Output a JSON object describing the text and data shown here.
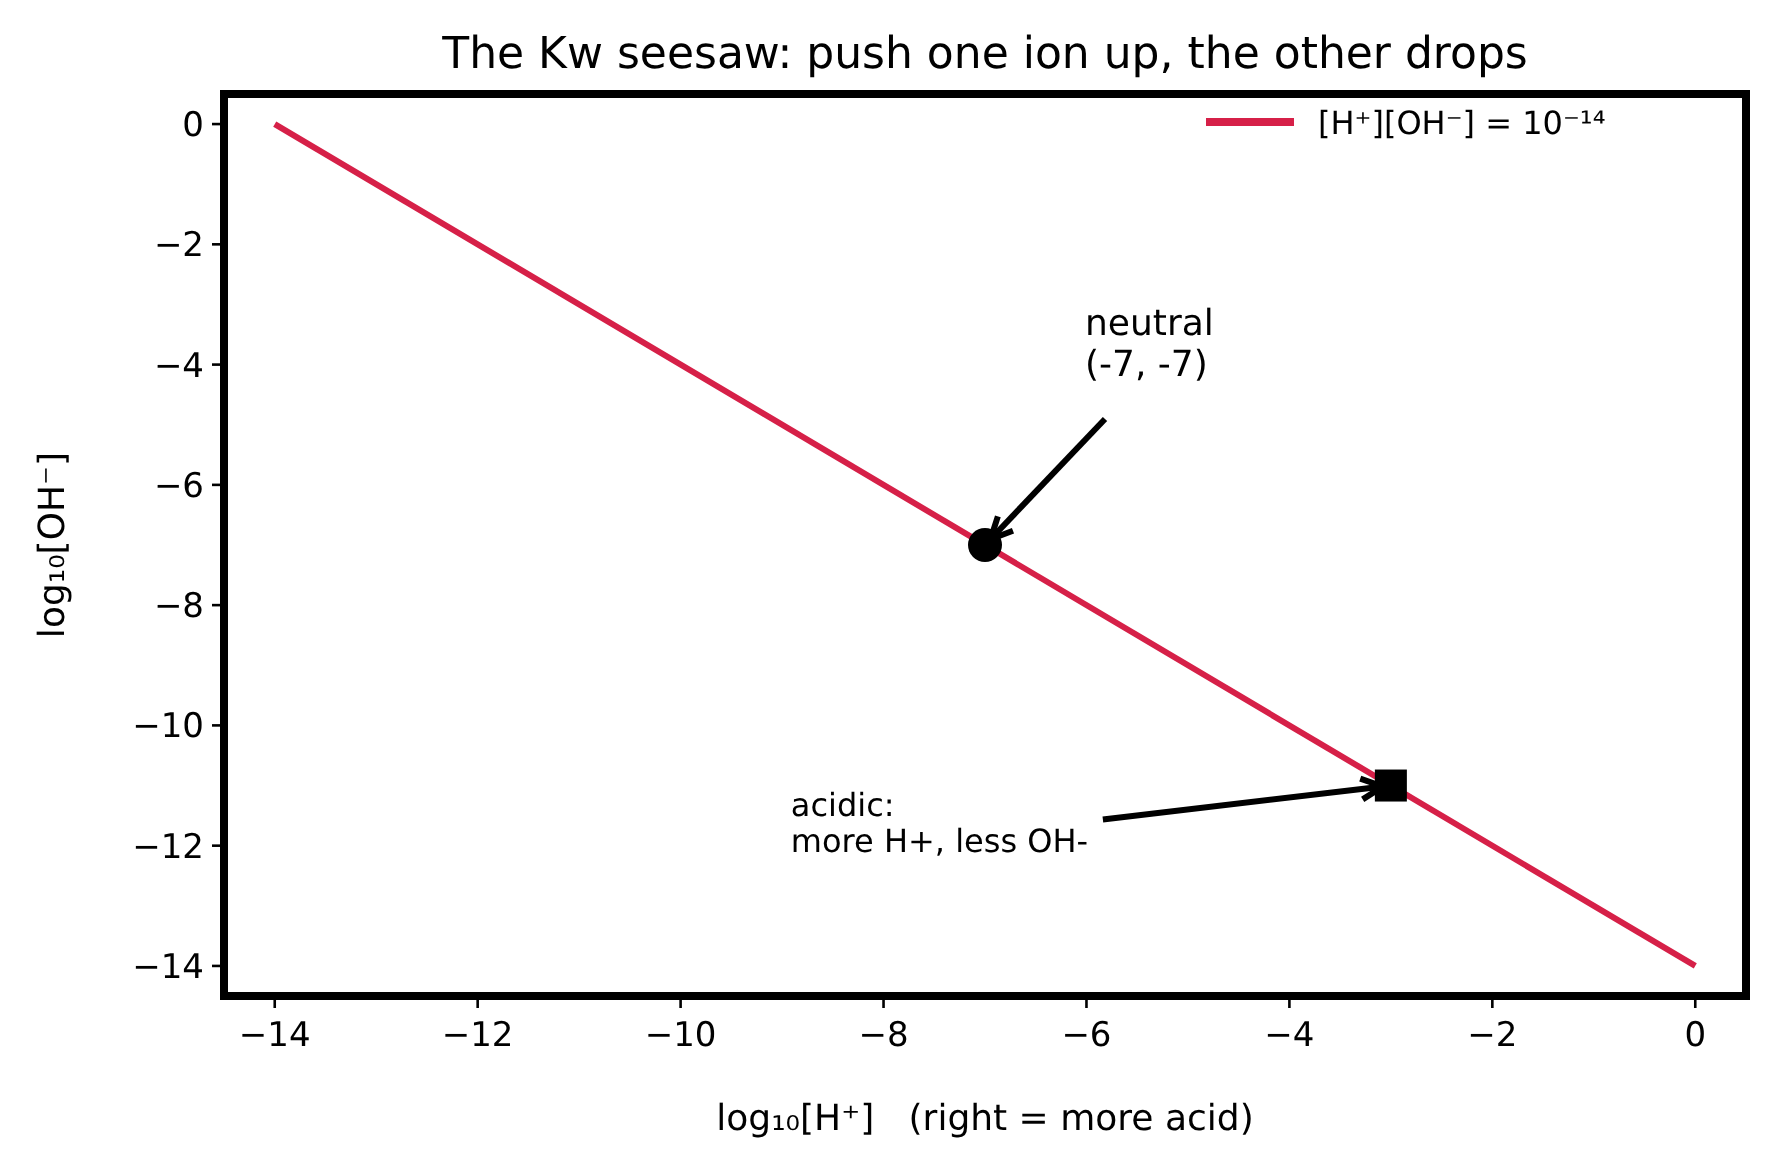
{
  "chart_data": {
    "type": "line",
    "title": "The Kw seesaw: push one ion up, the other drops",
    "xlabel": "log₁₀[H⁺]   (right = more acid)",
    "ylabel": "log₁₀[OH⁻]",
    "xlim": [
      -14.5,
      0.5
    ],
    "ylim": [
      -14.5,
      0.5
    ],
    "xticks": [
      -14,
      -12,
      -10,
      -8,
      -6,
      -4,
      -2,
      0
    ],
    "yticks": [
      -14,
      -12,
      -10,
      -8,
      -6,
      -4,
      -2,
      0
    ],
    "grid": false,
    "legend": "top right",
    "series": [
      {
        "name": "[H⁺][OH⁻] = 10⁻¹⁴",
        "color": "#d62048",
        "x": [
          -14,
          0
        ],
        "values": [
          0,
          -14
        ],
        "marker": "none",
        "line_style": "solid"
      },
      {
        "type": "scatter",
        "color": "#000000",
        "x": [
          -7
        ],
        "values": [
          -7
        ],
        "marker": "circle"
      },
      {
        "type": "scatter",
        "color": "#000000",
        "x": [
          -3
        ],
        "values": [
          -11
        ],
        "marker": "square"
      }
    ],
    "annotations": [
      {
        "text": "neutral\n(-7, -7)",
        "x": -7,
        "y": -7
      },
      {
        "text": "acidic:\nmore H+, less OH-",
        "x": -3,
        "y": -11
      }
    ]
  }
}
